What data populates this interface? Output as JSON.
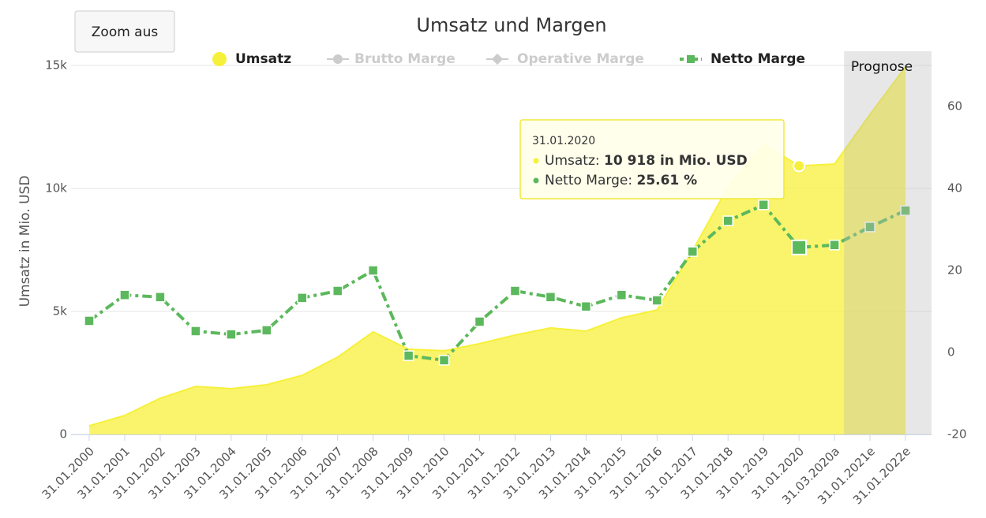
{
  "chart_data": {
    "type": "area_line",
    "title": "Umsatz und Margen",
    "button": "Zoom aus",
    "yaxis_title": "Umsatz in Mio. USD",
    "categories": [
      "31.01.2000",
      "31.01.2001",
      "31.01.2002",
      "31.01.2003",
      "31.01.2004",
      "31.01.2005",
      "31.01.2006",
      "31.01.2007",
      "31.01.2008",
      "31.01.2009",
      "31.01.2010",
      "31.01.2011",
      "31.01.2012",
      "31.01.2013",
      "31.01.2014",
      "31.01.2015",
      "31.01.2016",
      "31.01.2017",
      "31.01.2018",
      "31.01.2019",
      "31.01.2020",
      "31.03.2020a",
      "31.01.2021e",
      "31.01.2022e"
    ],
    "series": [
      {
        "name": "Umsatz",
        "color": "#f7f03a",
        "values": [
          350,
          770,
          1470,
          1950,
          1860,
          2020,
          2400,
          3140,
          4170,
          3460,
          3400,
          3690,
          4040,
          4330,
          4200,
          4740,
          5060,
          7470,
          10060,
          11800,
          10918,
          10990,
          13010,
          14940
        ]
      },
      {
        "name": "Netto Marge",
        "color": "#5cb85c",
        "axis": "y2",
        "values": [
          7.7,
          14,
          13.5,
          5.2,
          4.4,
          5.4,
          13.3,
          15,
          20,
          -0.8,
          -1.9,
          7.5,
          15,
          13.5,
          11.2,
          14,
          12.7,
          24.6,
          32.1,
          36,
          25.61,
          26.2,
          30.6,
          34.6
        ]
      }
    ],
    "legend_hidden": [
      "Brutto Marge",
      "Operative Marge"
    ],
    "ylim": [
      0,
      15000
    ],
    "yticks": [
      {
        "value": 0,
        "label": "0"
      },
      {
        "value": 5000,
        "label": "5k"
      },
      {
        "value": 10000,
        "label": "10k"
      },
      {
        "value": 15000,
        "label": "15k"
      }
    ],
    "y2lim": [
      -20,
      70
    ],
    "y2ticks": [
      -20,
      0,
      20,
      40,
      60
    ],
    "grid": true,
    "plot_band": {
      "label": "Prognose",
      "from": "31.03.2020a"
    },
    "tooltip": {
      "date": "31.01.2020",
      "index": 20,
      "lines": [
        {
          "label": "Umsatz:",
          "value_label": "10 918 in Mio. USD"
        },
        {
          "label": "Netto Marge:",
          "value_label": "25.61 %"
        }
      ]
    }
  }
}
